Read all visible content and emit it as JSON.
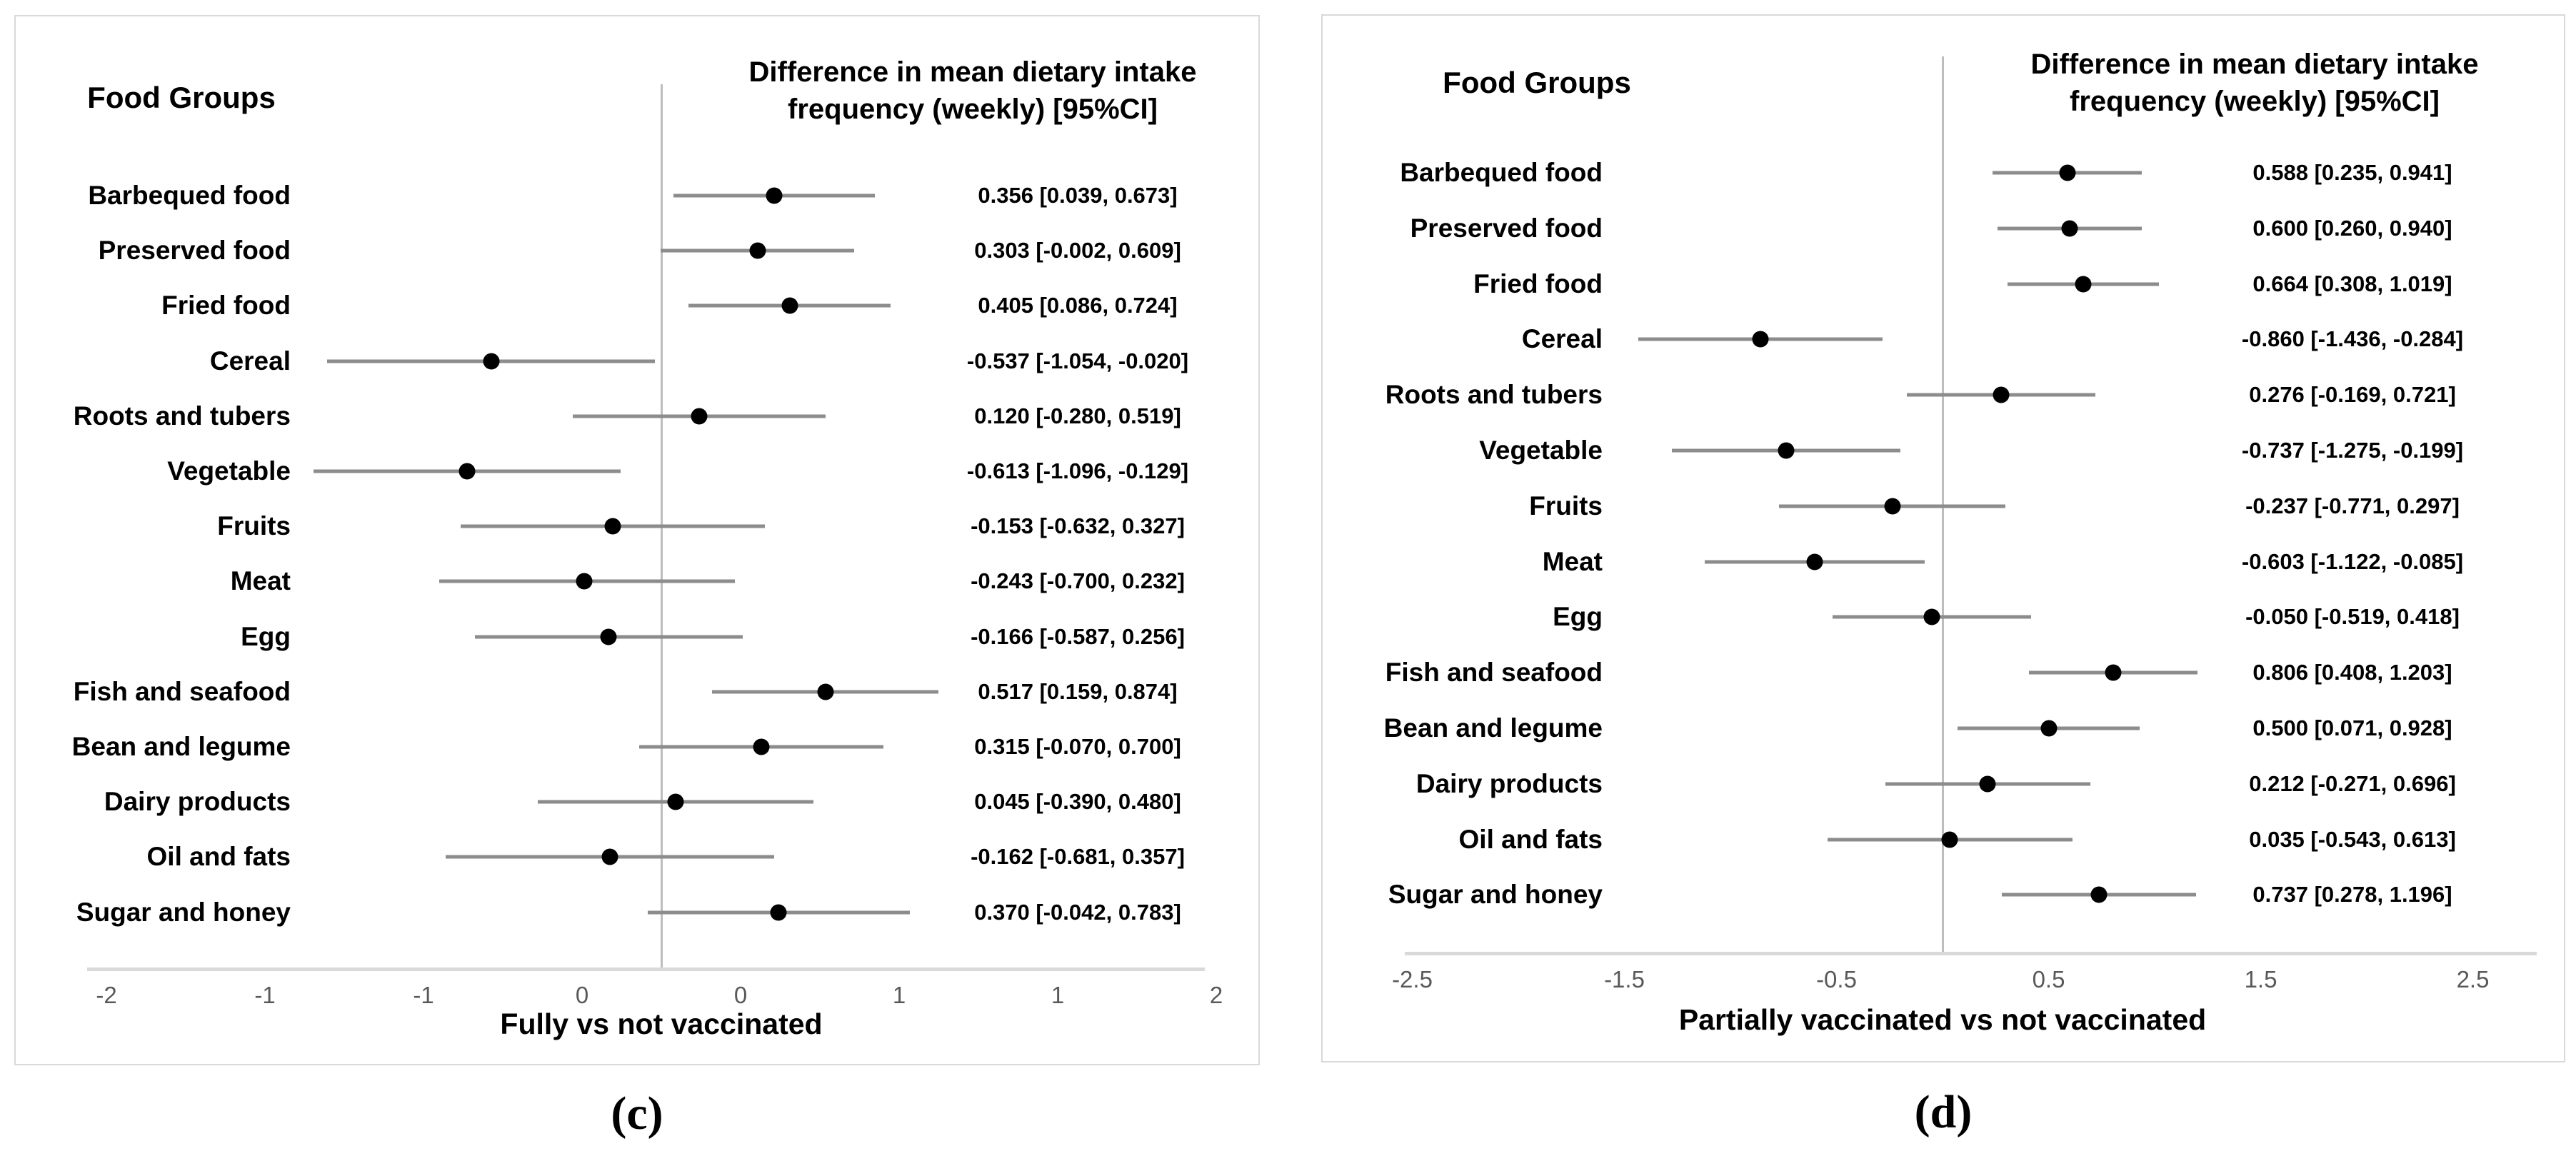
{
  "captions": {
    "c": "(c)",
    "d": "(d)"
  },
  "chart_data": [
    {
      "type": "scatter",
      "subtype": "forest-plot",
      "panel": "c",
      "left_header": "Food Groups",
      "title": "Difference in mean dietary intake frequency (weekly) [95%CI]",
      "title_line1": "Difference in mean dietary intake",
      "title_line2": "frequency (weekly) [95%CI]",
      "xlabel": "Fully vs not vaccinated",
      "xlim": [
        -2,
        2
      ],
      "grid": false,
      "legend": "none",
      "reference_line_x": 0,
      "ticks": [
        {
          "value": -1.75,
          "label": "-2"
        },
        {
          "value": -1.25,
          "label": "-1"
        },
        {
          "value": -0.75,
          "label": "-1"
        },
        {
          "value": -0.25,
          "label": "0"
        },
        {
          "value": 0.25,
          "label": "0"
        },
        {
          "value": 0.75,
          "label": "1"
        },
        {
          "value": 1.25,
          "label": "1"
        },
        {
          "value": 1.75,
          "label": "2"
        }
      ],
      "rows": [
        {
          "group": "Barbequed food",
          "mean": 0.356,
          "ci_low": 0.039,
          "ci_high": 0.673,
          "ci_text": "0.356 [0.039, 0.673]"
        },
        {
          "group": "Preserved food",
          "mean": 0.303,
          "ci_low": -0.002,
          "ci_high": 0.609,
          "ci_text": "0.303 [-0.002, 0.609]"
        },
        {
          "group": "Fried food",
          "mean": 0.405,
          "ci_low": 0.086,
          "ci_high": 0.724,
          "ci_text": "0.405 [0.086, 0.724]"
        },
        {
          "group": "Cereal",
          "mean": -0.537,
          "ci_low": -1.054,
          "ci_high": -0.02,
          "ci_text": "-0.537 [-1.054, -0.020]"
        },
        {
          "group": "Roots and tubers",
          "mean": 0.12,
          "ci_low": -0.28,
          "ci_high": 0.519,
          "ci_text": "0.120 [-0.280, 0.519]"
        },
        {
          "group": "Vegetable",
          "mean": -0.613,
          "ci_low": -1.096,
          "ci_high": -0.129,
          "ci_text": "-0.613 [-1.096, -0.129]"
        },
        {
          "group": "Fruits",
          "mean": -0.153,
          "ci_low": -0.632,
          "ci_high": 0.327,
          "ci_text": "-0.153 [-0.632, 0.327]"
        },
        {
          "group": "Meat",
          "mean": -0.243,
          "ci_low": -0.7,
          "ci_high": 0.232,
          "ci_text": "-0.243 [-0.700, 0.232]"
        },
        {
          "group": "Egg",
          "mean": -0.166,
          "ci_low": -0.587,
          "ci_high": 0.256,
          "ci_text": "-0.166 [-0.587, 0.256]"
        },
        {
          "group": "Fish and seafood",
          "mean": 0.517,
          "ci_low": 0.159,
          "ci_high": 0.874,
          "ci_text": "0.517 [0.159, 0.874]"
        },
        {
          "group": "Bean and legume",
          "mean": 0.315,
          "ci_low": -0.07,
          "ci_high": 0.7,
          "ci_text": "0.315 [-0.070, 0.700]"
        },
        {
          "group": "Dairy products",
          "mean": 0.045,
          "ci_low": -0.39,
          "ci_high": 0.48,
          "ci_text": "0.045 [-0.390, 0.480]"
        },
        {
          "group": "Oil and fats",
          "mean": -0.162,
          "ci_low": -0.681,
          "ci_high": 0.357,
          "ci_text": "-0.162 [-0.681, 0.357]"
        },
        {
          "group": "Sugar and honey",
          "mean": 0.37,
          "ci_low": -0.042,
          "ci_high": 0.783,
          "ci_text": "0.370 [-0.042, 0.783]"
        }
      ]
    },
    {
      "type": "scatter",
      "subtype": "forest-plot",
      "panel": "d",
      "left_header": "Food Groups",
      "title": "Difference in mean dietary intake frequency (weekly) [95%CI]",
      "title_line1": "Difference in mean dietary intake",
      "title_line2": "frequency (weekly) [95%CI]",
      "xlabel": "Partially vaccinated vs not vaccinated",
      "xlim": [
        -2.8,
        2.8
      ],
      "grid": false,
      "legend": "none",
      "reference_line_x": 0,
      "ticks": [
        {
          "value": -2.5,
          "label": "-2.5"
        },
        {
          "value": -1.5,
          "label": "-1.5"
        },
        {
          "value": -0.5,
          "label": "-0.5"
        },
        {
          "value": 0.5,
          "label": "0.5"
        },
        {
          "value": 1.5,
          "label": "1.5"
        },
        {
          "value": 2.5,
          "label": "2.5"
        }
      ],
      "rows": [
        {
          "group": "Barbequed food",
          "mean": 0.588,
          "ci_low": 0.235,
          "ci_high": 0.941,
          "ci_text": "0.588 [0.235, 0.941]"
        },
        {
          "group": "Preserved food",
          "mean": 0.6,
          "ci_low": 0.26,
          "ci_high": 0.94,
          "ci_text": "0.600 [0.260, 0.940]"
        },
        {
          "group": "Fried food",
          "mean": 0.664,
          "ci_low": 0.308,
          "ci_high": 1.019,
          "ci_text": "0.664 [0.308, 1.019]"
        },
        {
          "group": "Cereal",
          "mean": -0.86,
          "ci_low": -1.436,
          "ci_high": -0.284,
          "ci_text": "-0.860 [-1.436, -0.284]"
        },
        {
          "group": "Roots and tubers",
          "mean": 0.276,
          "ci_low": -0.169,
          "ci_high": 0.721,
          "ci_text": "0.276 [-0.169, 0.721]"
        },
        {
          "group": "Vegetable",
          "mean": -0.737,
          "ci_low": -1.275,
          "ci_high": -0.199,
          "ci_text": "-0.737 [-1.275, -0.199]"
        },
        {
          "group": "Fruits",
          "mean": -0.237,
          "ci_low": -0.771,
          "ci_high": 0.297,
          "ci_text": "-0.237 [-0.771, 0.297]"
        },
        {
          "group": "Meat",
          "mean": -0.603,
          "ci_low": -1.122,
          "ci_high": -0.085,
          "ci_text": "-0.603 [-1.122, -0.085]"
        },
        {
          "group": "Egg",
          "mean": -0.05,
          "ci_low": -0.519,
          "ci_high": 0.418,
          "ci_text": "-0.050 [-0.519, 0.418]"
        },
        {
          "group": "Fish and seafood",
          "mean": 0.806,
          "ci_low": 0.408,
          "ci_high": 1.203,
          "ci_text": "0.806 [0.408, 1.203]"
        },
        {
          "group": "Bean and legume",
          "mean": 0.5,
          "ci_low": 0.071,
          "ci_high": 0.928,
          "ci_text": "0.500 [0.071, 0.928]"
        },
        {
          "group": "Dairy products",
          "mean": 0.212,
          "ci_low": -0.271,
          "ci_high": 0.696,
          "ci_text": "0.212 [-0.271, 0.696]"
        },
        {
          "group": "Oil and fats",
          "mean": 0.035,
          "ci_low": -0.543,
          "ci_high": 0.613,
          "ci_text": "0.035 [-0.543, 0.613]"
        },
        {
          "group": "Sugar and honey",
          "mean": 0.737,
          "ci_low": 0.278,
          "ci_high": 1.196,
          "ci_text": "0.737 [0.278, 1.196]"
        }
      ]
    }
  ]
}
